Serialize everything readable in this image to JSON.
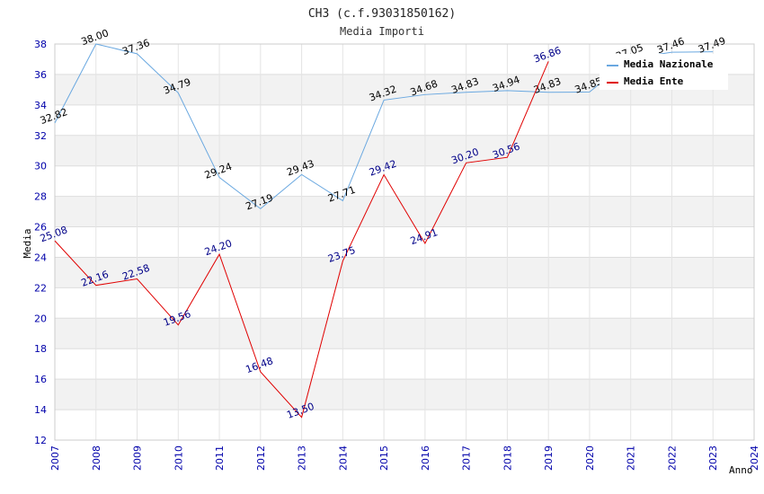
{
  "chart_data": {
    "type": "line",
    "title": "CH3 (c.f.93031850162)",
    "subtitle": "Media Importi",
    "xlabel": "Anno",
    "ylabel": "Media",
    "ylim": [
      12,
      38
    ],
    "yticks": [
      "12",
      "14",
      "16",
      "18",
      "20",
      "22",
      "24",
      "26",
      "28",
      "30",
      "32",
      "34",
      "36",
      "38"
    ],
    "xticks": [
      "2007",
      "2008",
      "2009",
      "2010",
      "2011",
      "2012",
      "2013",
      "2014",
      "2015",
      "2016",
      "2017",
      "2018",
      "2019",
      "2020",
      "2021",
      "2022",
      "2023",
      "2024"
    ],
    "grid": true,
    "legend_position": "top-right",
    "series": [
      {
        "name": "Media Nazionale",
        "color": "#6aa8e0",
        "x": [
          2007,
          2008,
          2009,
          2010,
          2011,
          2012,
          2013,
          2014,
          2015,
          2016,
          2017,
          2018,
          2019,
          2020,
          2021,
          2022,
          2023
        ],
        "values": [
          32.82,
          38.0,
          37.36,
          34.79,
          29.24,
          27.19,
          29.43,
          27.71,
          34.32,
          34.68,
          34.83,
          34.94,
          34.83,
          34.85,
          37.05,
          37.46,
          37.49
        ],
        "labels": [
          "32.82",
          "38.00",
          "37.36",
          "34.79",
          "29.24",
          "27.19",
          "29.43",
          "27.71",
          "34.32",
          "34.68",
          "34.83",
          "34.94",
          "34.83",
          "34.85",
          "37.05",
          "37.46",
          "37.49"
        ]
      },
      {
        "name": "Media Ente",
        "color": "#e00000",
        "x": [
          2007,
          2008,
          2009,
          2010,
          2011,
          2012,
          2013,
          2014,
          2015,
          2016,
          2017,
          2018,
          2019
        ],
        "values": [
          25.08,
          22.16,
          22.58,
          19.56,
          24.2,
          16.48,
          13.5,
          23.75,
          29.42,
          24.91,
          30.2,
          30.56,
          36.86
        ],
        "labels": [
          "25.08",
          "22.16",
          "22.58",
          "19.56",
          "24.20",
          "16.48",
          "13.50",
          "23.75",
          "29.42",
          "24.91",
          "30.20",
          "30.56",
          "36.86"
        ]
      }
    ]
  }
}
